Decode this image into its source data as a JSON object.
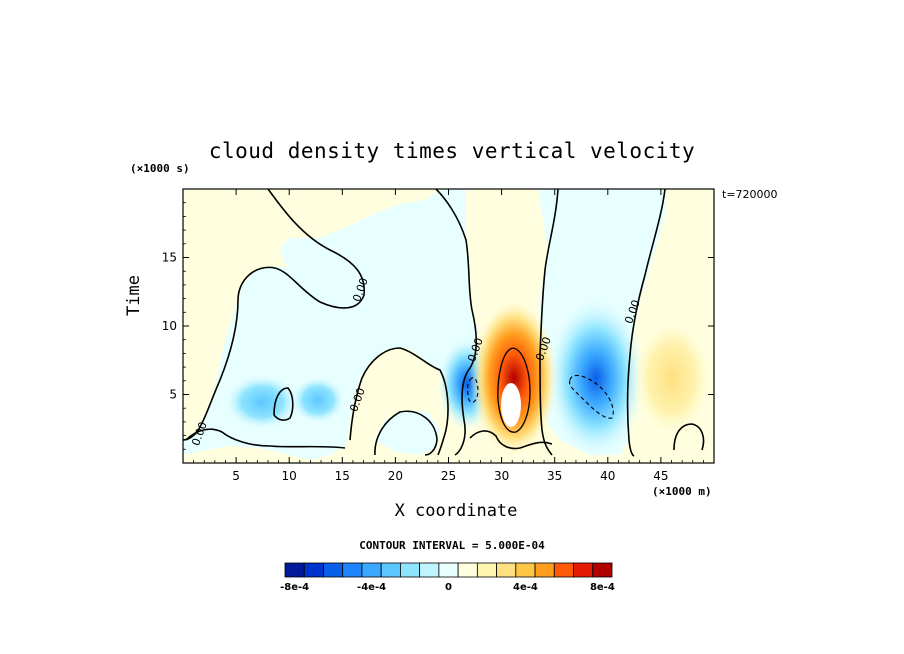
{
  "chart_data": {
    "type": "heatmap",
    "title": "cloud density times vertical velocity",
    "xlabel": "X coordinate",
    "ylabel": "Time",
    "x_unit_label": "(×1000 m)",
    "y_unit_label": "(×1000 s)",
    "time_stamp": "t=720000",
    "xlim": [
      0,
      50
    ],
    "ylim": [
      0,
      20
    ],
    "x_ticks": [
      5,
      10,
      15,
      20,
      25,
      30,
      35,
      40,
      45
    ],
    "x_tick_labels": [
      "5",
      "10",
      "15",
      "20",
      "25",
      "30",
      "35",
      "40",
      "45"
    ],
    "y_ticks": [
      5,
      10,
      15
    ],
    "y_tick_labels": [
      "5",
      "10",
      "15"
    ],
    "contour_interval_text": "CONTOUR INTERVAL = 5.000E-04",
    "contour_interval": 0.0005,
    "zero_contour_label": "0.00",
    "colorbar": {
      "colors": [
        "#001a99",
        "#0033cc",
        "#0a5fe8",
        "#1f85ff",
        "#3aa8ff",
        "#5cc8ff",
        "#8ee4ff",
        "#bff4ff",
        "#e8ffff",
        "#ffffe0",
        "#fff3b0",
        "#ffe080",
        "#ffc646",
        "#ff9e1e",
        "#ff5a0a",
        "#e61a05",
        "#b00000"
      ],
      "tick_labels": [
        "-8e-4",
        "-4e-4",
        "0",
        "4e-4",
        "8e-4"
      ],
      "tick_values": [
        -0.0008,
        -0.0004,
        0,
        0.0004,
        0.0008
      ]
    },
    "features": [
      {
        "kind": "updraft",
        "x": 30.5,
        "y": 6.0,
        "peak": 0.0012
      },
      {
        "kind": "updraft",
        "x": 46.5,
        "y": 4.5,
        "peak": 0.0003
      },
      {
        "kind": "downdraft",
        "x": 37.0,
        "y": 5.0,
        "peak": -0.0007
      },
      {
        "kind": "downdraft",
        "x": 27.0,
        "y": 5.0,
        "peak": -0.0005
      },
      {
        "kind": "downdraft",
        "x": 8.0,
        "y": 4.5,
        "peak": -0.0002
      },
      {
        "kind": "downdraft",
        "x": 21.0,
        "y": 3.0,
        "peak": -0.0001
      }
    ]
  }
}
